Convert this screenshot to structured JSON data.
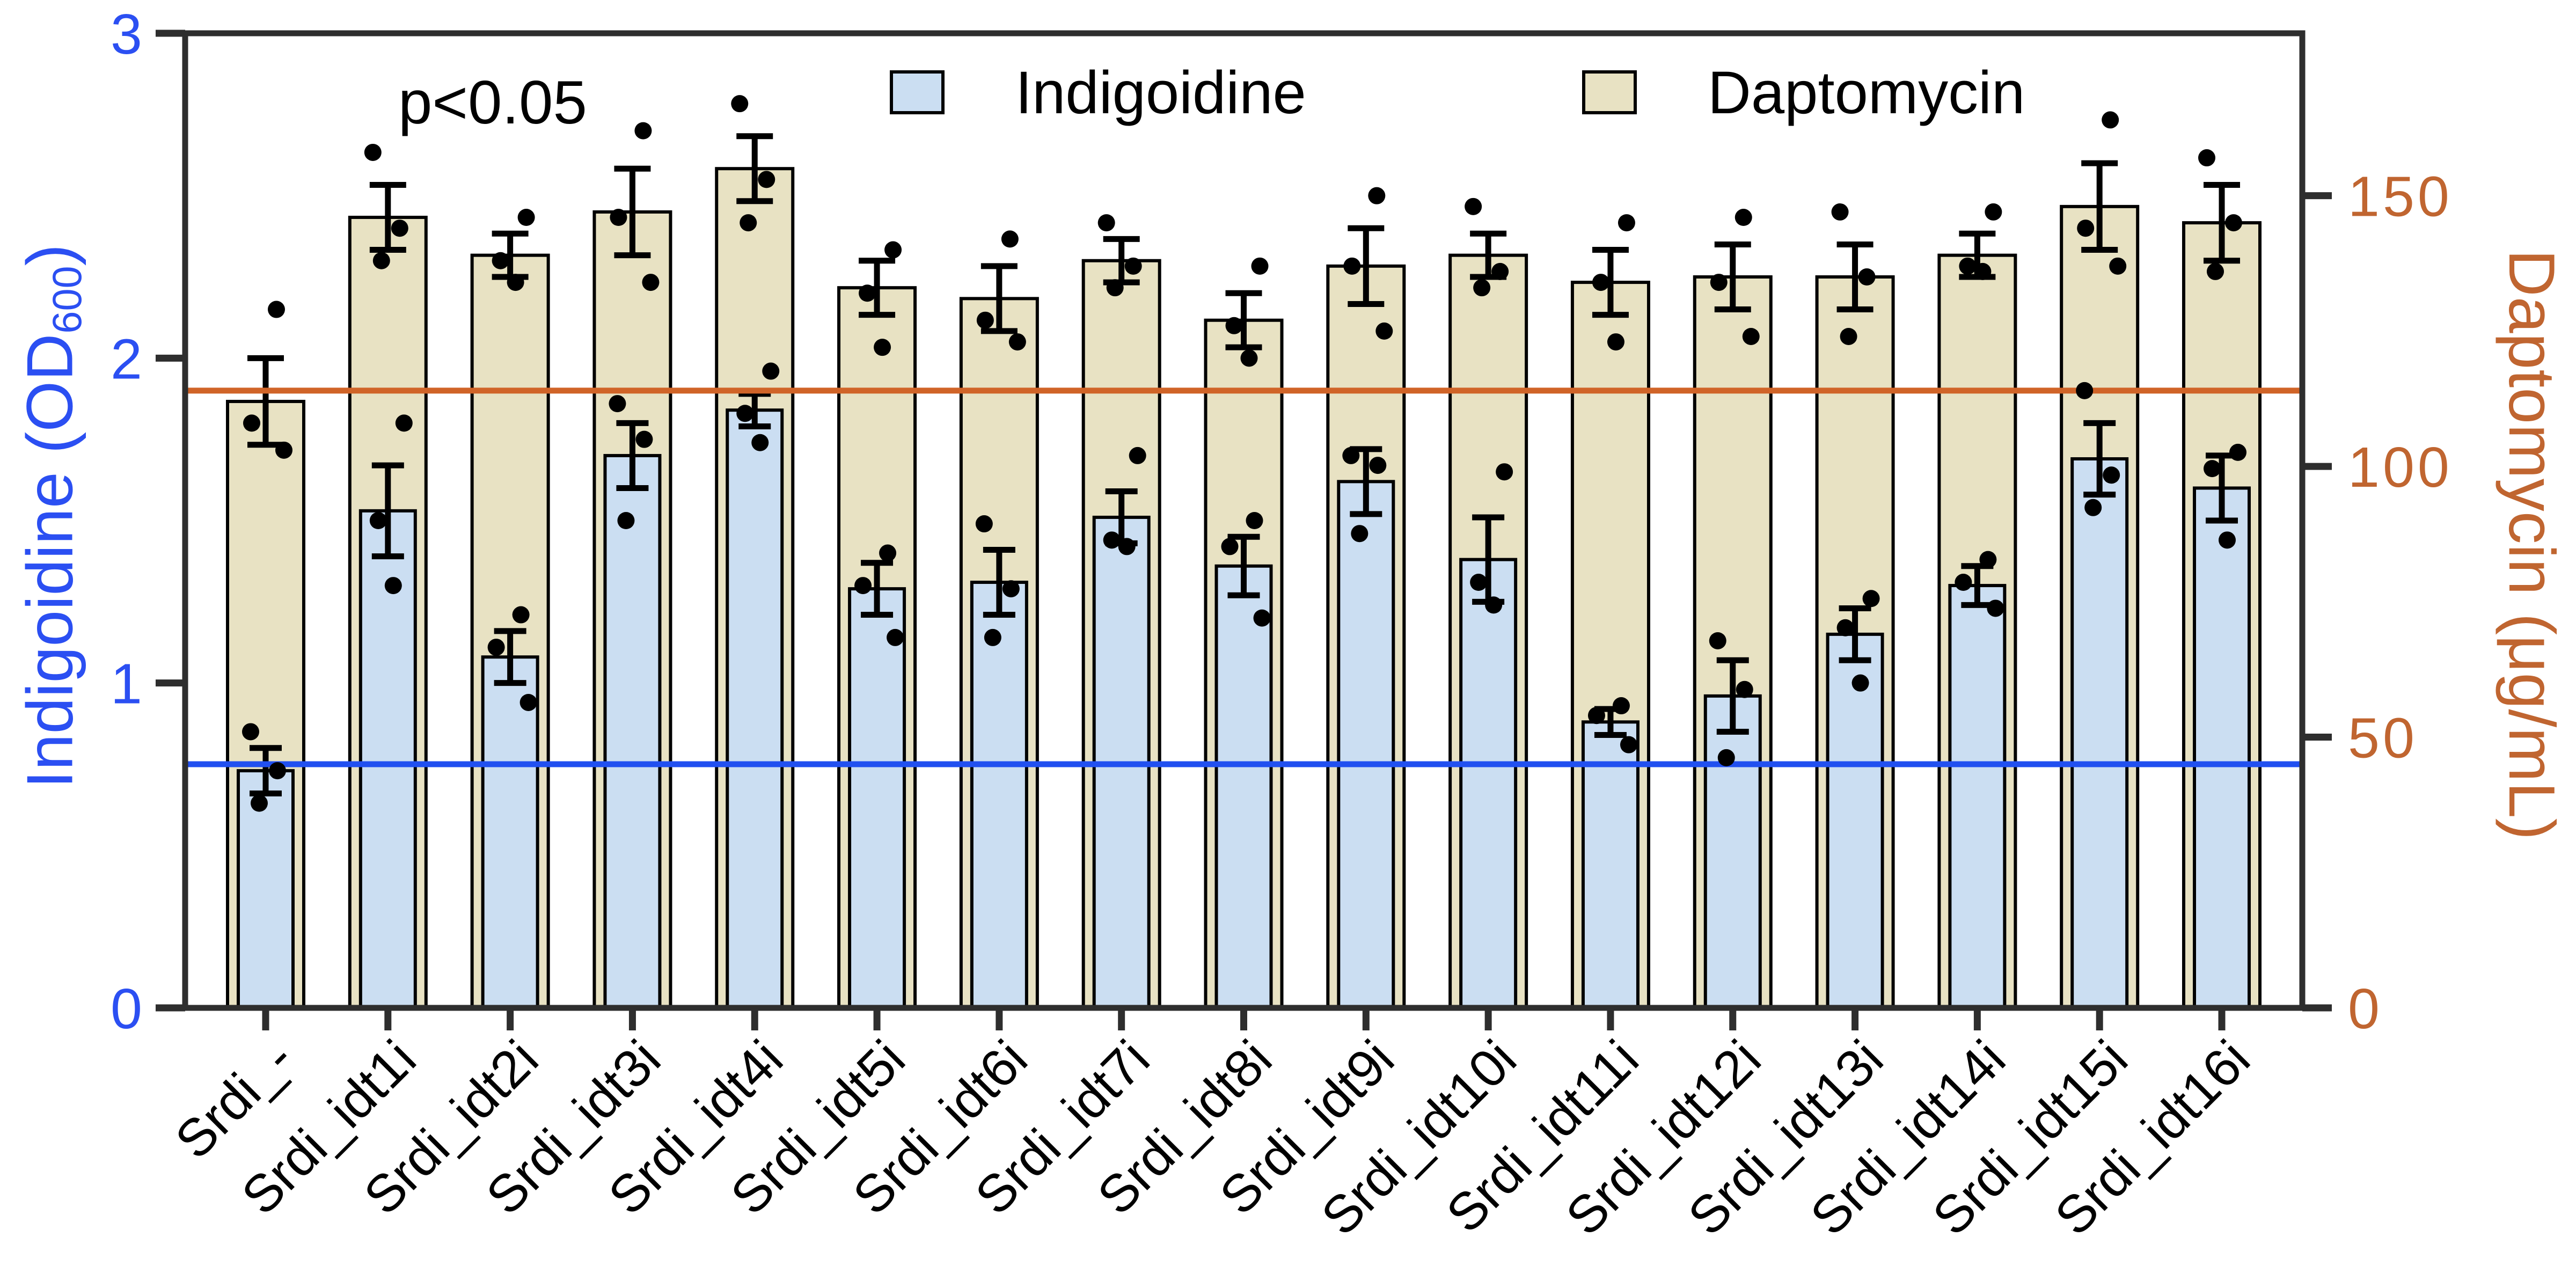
{
  "chart_data": {
    "type": "bar",
    "annotation": "p<0.05",
    "categories": [
      "Srdi_-",
      "Srdi_idt1i",
      "Srdi_idt2i",
      "Srdi_idt3i",
      "Srdi_idt4i",
      "Srdi_idt5i",
      "Srdi_idt6i",
      "Srdi_idt7i",
      "Srdi_idt8i",
      "Srdi_idt9i",
      "Srdi_idt10i",
      "Srdi_idt11i",
      "Srdi_idt12i",
      "Srdi_idt13i",
      "Srdi_idt14i",
      "Srdi_idt15i",
      "Srdi_idt16i"
    ],
    "series": [
      {
        "name": "Indigoidine",
        "axis": "left",
        "fill": "#cbdef2",
        "values": [
          0.73,
          1.53,
          1.08,
          1.7,
          1.84,
          1.29,
          1.31,
          1.51,
          1.36,
          1.62,
          1.38,
          0.88,
          0.96,
          1.15,
          1.3,
          1.69,
          1.6
        ],
        "errors": [
          0.07,
          0.14,
          0.08,
          0.1,
          0.05,
          0.08,
          0.1,
          0.08,
          0.09,
          0.1,
          0.13,
          0.04,
          0.11,
          0.08,
          0.06,
          0.11,
          0.1
        ],
        "points": [
          [
            0.85,
            0.73,
            0.63
          ],
          [
            1.8,
            1.5,
            1.3
          ],
          [
            1.21,
            1.11,
            0.94
          ],
          [
            1.86,
            1.75,
            1.5
          ],
          [
            1.96,
            1.83,
            1.74
          ],
          [
            1.4,
            1.3,
            1.14
          ],
          [
            1.49,
            1.29,
            1.14
          ],
          [
            1.7,
            1.44,
            1.42
          ],
          [
            1.5,
            1.42,
            1.2
          ],
          [
            1.7,
            1.67,
            1.46
          ],
          [
            1.65,
            1.31,
            1.24
          ],
          [
            0.93,
            0.9,
            0.81
          ],
          [
            1.13,
            0.98,
            0.77
          ],
          [
            1.26,
            1.17,
            1.0
          ],
          [
            1.38,
            1.31,
            1.23
          ],
          [
            1.9,
            1.64,
            1.54
          ],
          [
            1.71,
            1.66,
            1.44
          ]
        ]
      },
      {
        "name": "Daptomycin",
        "axis": "right",
        "fill": "#e8e2c3",
        "values": [
          112,
          146,
          139,
          147,
          155,
          133,
          131,
          138,
          127,
          137,
          139,
          134,
          135,
          135,
          139,
          148,
          145
        ],
        "errors": [
          8,
          6,
          4,
          8,
          6,
          5,
          6,
          4,
          5,
          7,
          4,
          6,
          6,
          6,
          4,
          8,
          7
        ],
        "points": [
          [
            129,
            108,
            103
          ],
          [
            158,
            144,
            138
          ],
          [
            146,
            138,
            134
          ],
          [
            162,
            146,
            134
          ],
          [
            167,
            153,
            145
          ],
          [
            140,
            132,
            122
          ],
          [
            142,
            127,
            123
          ],
          [
            145,
            137,
            133
          ],
          [
            137,
            126,
            120
          ],
          [
            150,
            137,
            125
          ],
          [
            148,
            136,
            133
          ],
          [
            145,
            134,
            123
          ],
          [
            146,
            134,
            124
          ],
          [
            147,
            135,
            124
          ],
          [
            147,
            137,
            136
          ],
          [
            164,
            144,
            137
          ],
          [
            157,
            145,
            136
          ]
        ]
      }
    ],
    "left_axis": {
      "full_label": "Indigoidine (OD600)",
      "label_prefix": "Indigoidine (OD",
      "label_sub": "600",
      "label_suffix": ")",
      "ticks": [
        0,
        1,
        2,
        3
      ],
      "max": 3,
      "color": "#2b4ff2"
    },
    "right_axis": {
      "label": "Daptomycin (μg/mL)",
      "ticks": [
        0,
        50,
        100,
        150
      ],
      "max": 180,
      "color": "#c06530"
    },
    "reference_lines": [
      {
        "name": "indigoidine-baseline",
        "axis": "left",
        "value": 0.75,
        "color": "#2150f0"
      },
      {
        "name": "daptomycin-baseline",
        "axis": "right",
        "value": 114,
        "color": "#d06428"
      }
    ],
    "legend": [
      {
        "label": "Indigoidine",
        "swatch": "#cbdef2"
      },
      {
        "label": "Daptomycin",
        "swatch": "#e8e2c3"
      }
    ],
    "layout": {
      "grid": false,
      "legend_position": "top-center",
      "bar_outline": "#000000",
      "spine_color": "#2e2e2e"
    }
  }
}
